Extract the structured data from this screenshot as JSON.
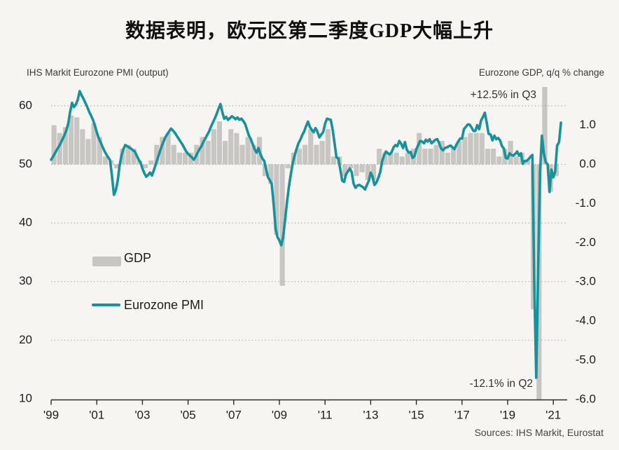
{
  "title": "数据表明，欧元区第二季度GDP大幅上升",
  "left_axis_title": "IHS Markit Eurozone PMI (output)",
  "right_axis_title": "Eurozone GDP, q/q % change",
  "legend": {
    "gdp_label": "GDP",
    "pmi_label": "Eurozone PMI"
  },
  "annotations": {
    "gdp_q3": "+12.5% in Q3",
    "gdp_q2": "-12.1% in Q2"
  },
  "source": "Sources: IHS Markit, Eurostat",
  "colors": {
    "background": "#f6f5f2",
    "bar": "#c8c6c3",
    "line": "#17929a",
    "grid": "#a9a7a3",
    "axis": "#2a2a2a",
    "tick_text": "#1d1d1d"
  },
  "chart_data": {
    "type": "combo-bar-line",
    "title": "数据表明，欧元区第二季度GDP大幅上升",
    "x": {
      "start_year": 1999,
      "end_year": 2021.6,
      "tick_years": [
        1999,
        2001,
        2003,
        2005,
        2007,
        2009,
        2011,
        2013,
        2015,
        2017,
        2019,
        2021
      ],
      "tick_labels": [
        "'99",
        "'01",
        "'03",
        "'05",
        "'07",
        "'09",
        "'11",
        "'13",
        "'15",
        "'17",
        "'19",
        "'21"
      ]
    },
    "left_axis": {
      "label": "IHS Markit Eurozone PMI (output)",
      "ticks": [
        60,
        50,
        40,
        30,
        20,
        10
      ],
      "grid_ticks": [
        60,
        50,
        40,
        30,
        20
      ]
    },
    "right_axis": {
      "label": "Eurozone GDP, q/q % change",
      "ticks": [
        "1.0",
        "0.0",
        "-1.0",
        "-2.0",
        "-3.0",
        "-4.0",
        "-5.0",
        "-6.0"
      ],
      "zero_aligned_with_pmi": 50
    },
    "grid": "dotted",
    "legend_position": "inside-left",
    "series": [
      {
        "name": "GDP",
        "type": "bar",
        "axis": "right",
        "period": "quarterly",
        "start": "1999Q1",
        "unit": "q/q % change",
        "values": [
          1.0,
          0.8,
          0.95,
          1.25,
          1.2,
          0.9,
          0.65,
          1.05,
          0.7,
          0.2,
          0.1,
          -0.1,
          0.4,
          0.5,
          0.4,
          0.1,
          -0.1,
          0.1,
          0.5,
          0.7,
          0.8,
          0.5,
          0.3,
          0.3,
          0.3,
          0.5,
          0.7,
          0.6,
          0.9,
          1.1,
          0.6,
          0.9,
          0.8,
          0.5,
          0.7,
          0.5,
          0.7,
          -0.3,
          -0.5,
          -1.8,
          -3.1,
          -0.1,
          0.3,
          0.4,
          0.5,
          0.9,
          0.5,
          0.6,
          0.9,
          0.2,
          0.2,
          -0.3,
          -0.1,
          -0.3,
          -0.2,
          -0.4,
          -0.4,
          0.4,
          0.3,
          0.3,
          0.3,
          0.2,
          0.3,
          0.4,
          0.8,
          0.4,
          0.4,
          0.5,
          0.6,
          0.3,
          0.4,
          0.6,
          0.7,
          0.8,
          0.8,
          0.8,
          0.4,
          0.4,
          0.2,
          0.4,
          0.6,
          0.2,
          0.3,
          0.1,
          -3.7,
          -12.1,
          12.5,
          -0.7,
          -0.3
        ]
      },
      {
        "name": "Eurozone PMI",
        "type": "line",
        "axis": "left",
        "period": "monthly",
        "start": "1999-01",
        "values": [
          50.8,
          51.3,
          51.9,
          52.5,
          53.0,
          53.6,
          54.3,
          55.0,
          55.8,
          57.0,
          59.0,
          60.5,
          59.8,
          60.2,
          61.0,
          62.5,
          61.8,
          61.2,
          60.5,
          59.8,
          59.0,
          58.3,
          57.6,
          56.6,
          55.5,
          54.5,
          53.8,
          53.0,
          52.3,
          51.7,
          51.2,
          50.7,
          48.0,
          44.8,
          45.6,
          47.2,
          49.8,
          51.5,
          52.6,
          53.3,
          53.1,
          52.9,
          52.7,
          52.4,
          52.2,
          51.5,
          50.8,
          50.3,
          49.3,
          48.5,
          47.9,
          48.2,
          48.6,
          48.1,
          49.0,
          50.0,
          51.0,
          52.0,
          53.0,
          53.8,
          54.6,
          55.1,
          55.6,
          56.1,
          55.8,
          55.4,
          54.9,
          54.4,
          53.9,
          53.4,
          52.8,
          52.2,
          51.8,
          51.5,
          51.2,
          50.8,
          51.3,
          52.0,
          52.6,
          53.1,
          53.8,
          54.4,
          55.0,
          55.6,
          56.4,
          57.1,
          57.8,
          58.6,
          59.5,
          60.3,
          58.9,
          57.8,
          58.1,
          57.6,
          57.9,
          58.2,
          58.0,
          57.7,
          58.0,
          57.6,
          57.8,
          57.4,
          56.9,
          55.9,
          54.9,
          54.3,
          53.4,
          52.6,
          52.0,
          52.8,
          51.8,
          51.0,
          50.6,
          49.2,
          47.8,
          47.3,
          46.6,
          43.0,
          39.0,
          37.6,
          37.0,
          36.2,
          37.6,
          40.6,
          43.6,
          46.2,
          48.3,
          50.2,
          51.5,
          52.6,
          53.6,
          54.2,
          55.0,
          55.6,
          56.5,
          57.3,
          56.4,
          55.9,
          55.5,
          56.2,
          55.6,
          54.6,
          55.1,
          55.5,
          56.9,
          57.8,
          57.7,
          57.6,
          55.9,
          53.6,
          51.2,
          51.0,
          49.2,
          47.2,
          47.0,
          48.3,
          48.8,
          49.3,
          48.7,
          46.7,
          46.0,
          46.4,
          46.5,
          46.3,
          46.1,
          45.7,
          46.5,
          47.2,
          48.6,
          47.9,
          46.5,
          46.9,
          47.7,
          48.7,
          50.5,
          51.5,
          52.2,
          51.9,
          51.7,
          52.1,
          52.9,
          53.3,
          53.1,
          54.0,
          53.5,
          52.8,
          53.8,
          52.5,
          52.0,
          52.1,
          51.1,
          51.4,
          52.6,
          53.3,
          54.0,
          53.9,
          53.6,
          54.2,
          53.9,
          54.3,
          53.6,
          53.9,
          54.2,
          54.3,
          53.6,
          52.7,
          52.4,
          52.8,
          52.9,
          53.1,
          53.2,
          52.9,
          52.6,
          53.3,
          53.9,
          54.4,
          54.4,
          56.0,
          56.4,
          56.8,
          56.8,
          56.3,
          55.7,
          55.7,
          56.7,
          56.0,
          57.5,
          58.1,
          58.8,
          57.1,
          55.2,
          55.1,
          54.1,
          54.9,
          54.3,
          54.5,
          54.1,
          53.1,
          52.7,
          51.1,
          51.0,
          51.9,
          51.6,
          51.5,
          51.8,
          52.2,
          51.5,
          51.9,
          50.1,
          50.6,
          50.6,
          50.9,
          51.3,
          51.6,
          29.7,
          13.6,
          31.9,
          48.5,
          54.9,
          51.9,
          50.4,
          50.0,
          45.3,
          49.1,
          47.8,
          48.8,
          53.2,
          53.8,
          57.1
        ]
      }
    ],
    "annotations": [
      {
        "text": "+12.5% in Q3",
        "series": "GDP",
        "quarter": "2020Q3",
        "value": 12.5
      },
      {
        "text": "-12.1% in Q2",
        "series": "GDP",
        "quarter": "2020Q2",
        "value": -12.1
      }
    ]
  }
}
